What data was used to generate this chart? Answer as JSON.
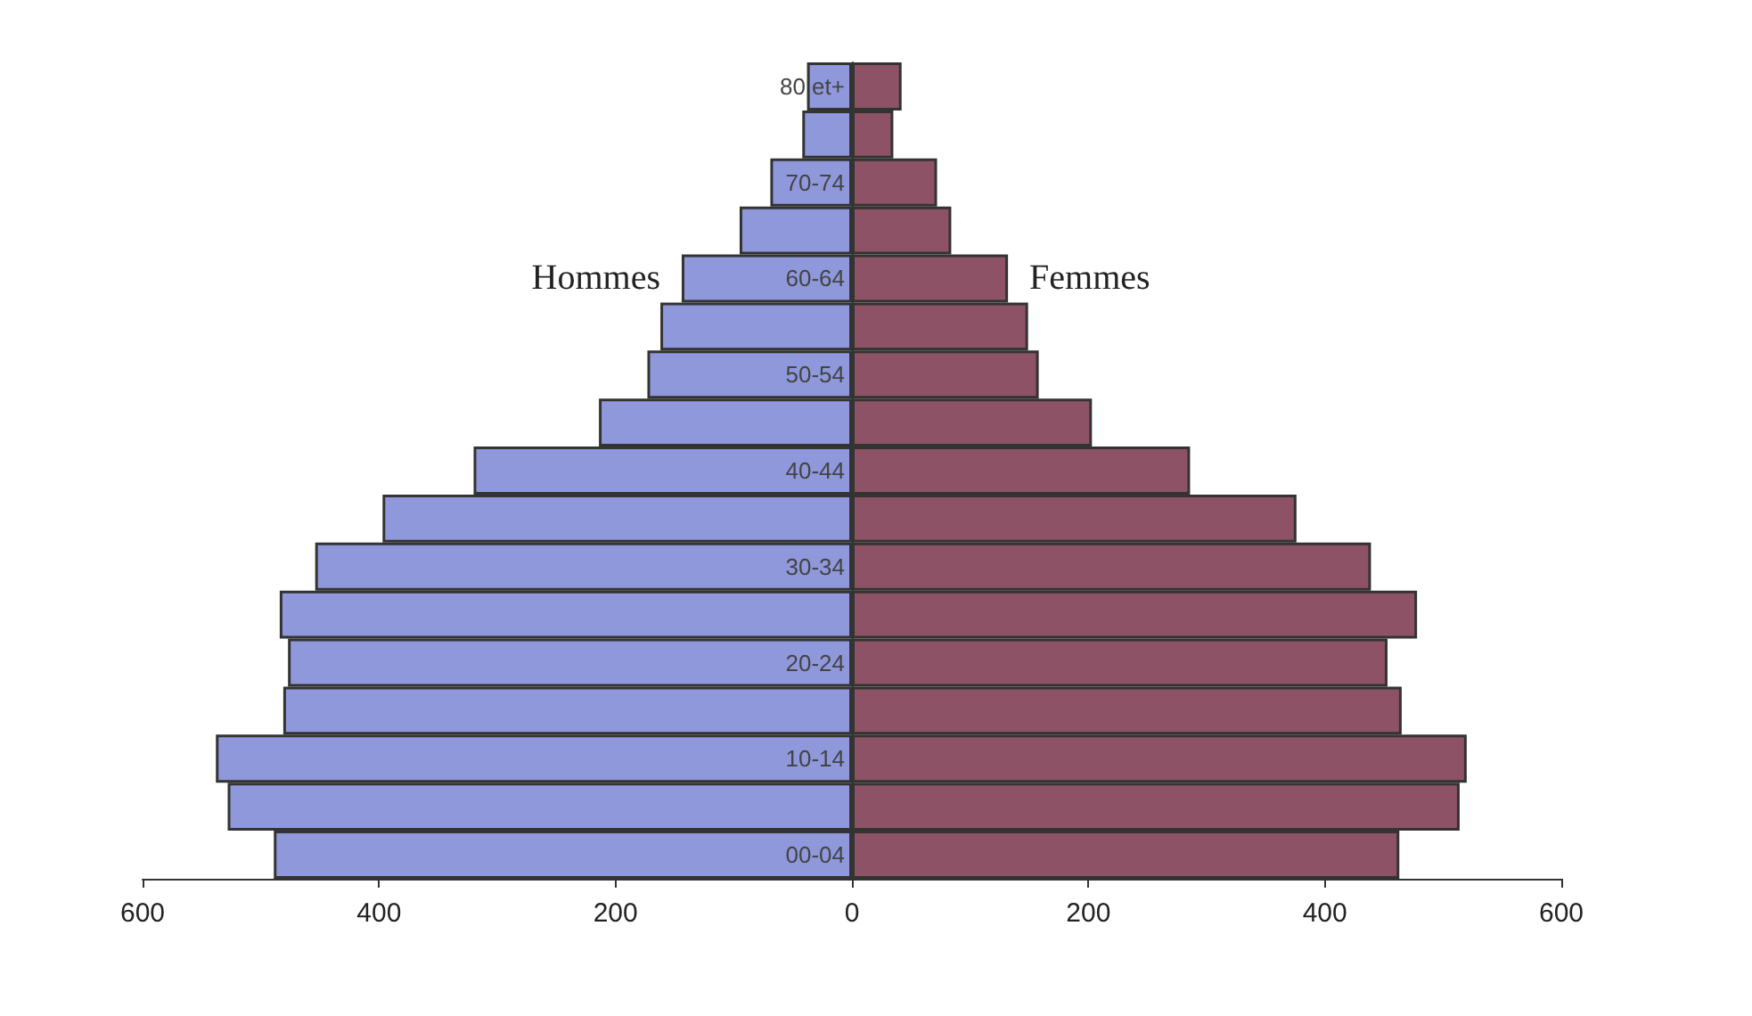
{
  "chart_data": {
    "type": "bar",
    "orientation": "horizontal",
    "categories": [
      "80 et+",
      null,
      "70-74",
      null,
      "60-64",
      null,
      "50-54",
      null,
      "40-44",
      null,
      "30-34",
      null,
      "20-24",
      null,
      "10-14",
      null,
      "00-04"
    ],
    "series": [
      {
        "name": "Hommes",
        "color": "#8f98db",
        "values": [
          -38,
          -42,
          -69,
          -95,
          -144,
          -162,
          -173,
          -214,
          -320,
          -397,
          -454,
          -484,
          -477,
          -481,
          -538,
          -528,
          -489
        ]
      },
      {
        "name": "Femmes",
        "color": "#8e5266",
        "values": [
          42,
          35,
          72,
          84,
          132,
          149,
          158,
          203,
          286,
          376,
          439,
          478,
          453,
          465,
          520,
          514,
          463
        ]
      }
    ],
    "xlim": [
      -600,
      600
    ],
    "xticks": [
      {
        "value": -600,
        "label": "600"
      },
      {
        "value": -400,
        "label": "400"
      },
      {
        "value": -200,
        "label": "200"
      },
      0,
      200,
      400,
      600
    ],
    "stacked": true,
    "grid": false,
    "legend": false
  }
}
